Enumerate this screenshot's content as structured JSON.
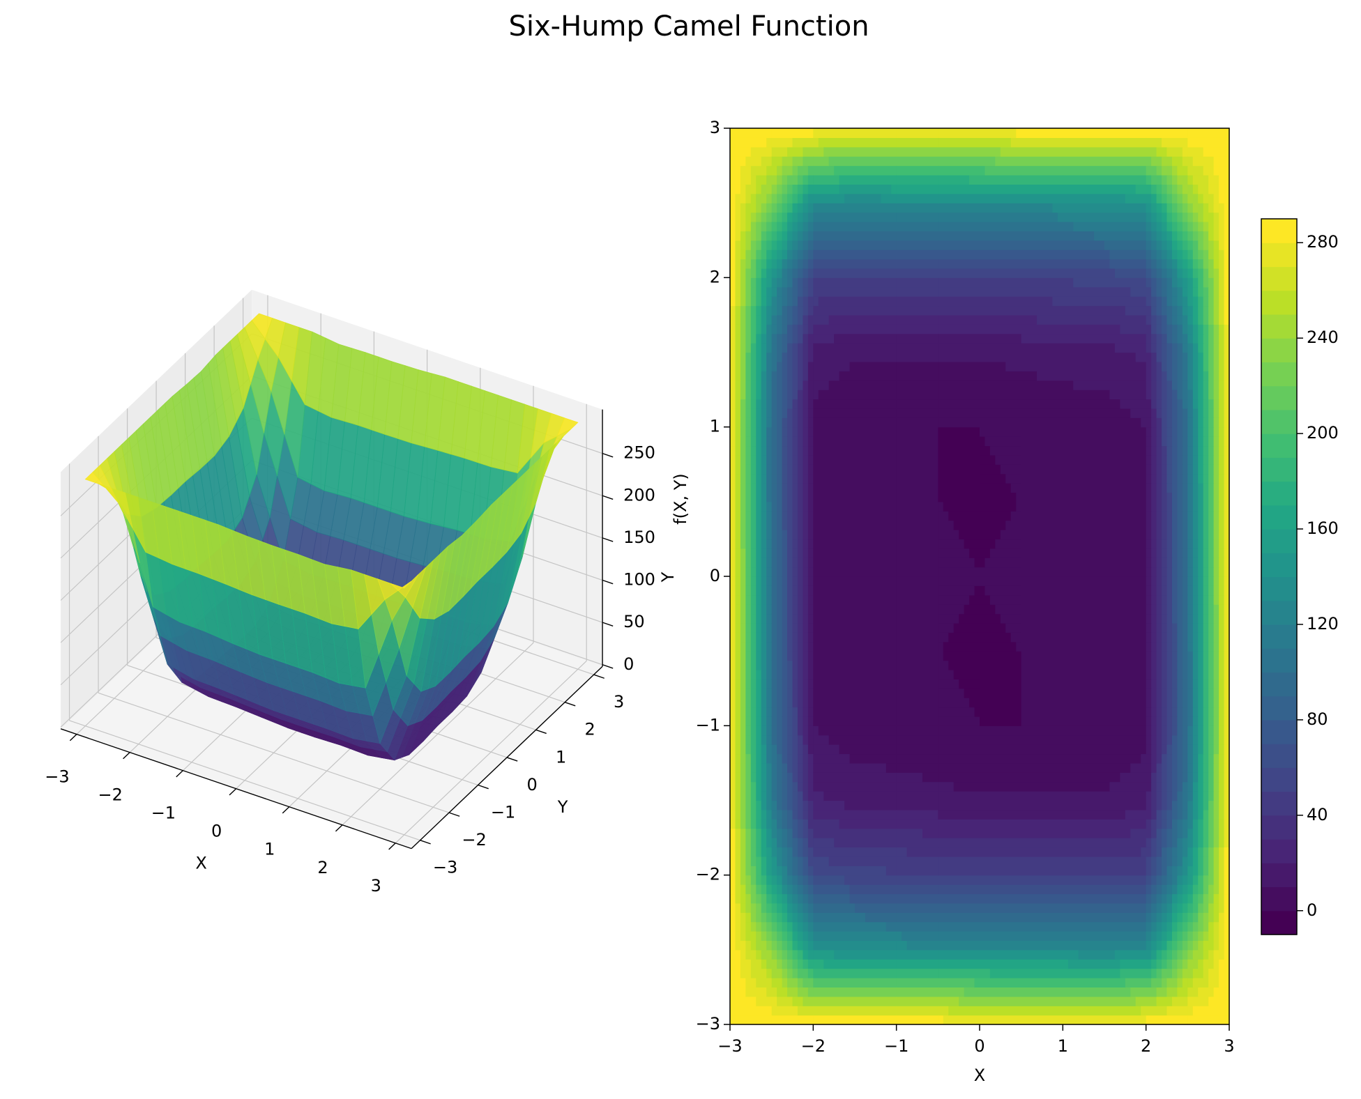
{
  "title": "Six-Hump Camel Function",
  "chart_data": [
    {
      "type": "surface3d",
      "xlabel": "X",
      "ylabel": "Y",
      "zlabel": "f(X, Y)",
      "colormap": "viridis",
      "clim": [
        -1,
        290
      ],
      "x": [
        -3,
        -2.5,
        -2,
        -1.5,
        -1,
        -0.5,
        0,
        0.5,
        1,
        1.5,
        2,
        2.5,
        3
      ],
      "y": [
        -3,
        -2.5,
        -2,
        -1.5,
        -1,
        -0.5,
        0,
        0.5,
        1,
        1.5,
        2,
        2.5,
        3
      ],
      "z": [
        [
          290,
          290,
          290,
          290,
          290,
          290,
          288,
          287,
          287,
          286,
          290,
          290,
          290
        ],
        [
          290,
          237,
          144,
          137,
          136,
          133,
          131,
          131,
          131,
          129,
          134,
          225,
          290
        ],
        [
          290,
          153,
          60,
          53,
          52,
          50,
          48,
          48,
          48,
          47,
          52,
          143,
          290
        ],
        [
          290,
          115,
          22,
          16,
          15,
          13,
          11,
          11,
          12,
          11,
          16,
          108,
          290
        ],
        [
          290,
          103,
          10,
          4,
          3,
          1,
          0,
          0,
          1,
          1,
          6,
          98,
          287
        ],
        [
          290,
          100,
          8,
          2,
          2,
          0,
          -1,
          0,
          1,
          1,
          6,
          98,
          288
        ],
        [
          290,
          100,
          8,
          2,
          2,
          1,
          0,
          1,
          2,
          2,
          8,
          100,
          290
        ],
        [
          288,
          98,
          6,
          1,
          1,
          0,
          -1,
          0,
          2,
          2,
          8,
          100,
          290
        ],
        [
          287,
          98,
          6,
          1,
          1,
          0,
          0,
          1,
          3,
          4,
          10,
          103,
          290
        ],
        [
          290,
          108,
          16,
          11,
          12,
          11,
          11,
          13,
          15,
          16,
          22,
          115,
          290
        ],
        [
          290,
          143,
          52,
          47,
          48,
          48,
          48,
          50,
          52,
          53,
          60,
          153,
          290
        ],
        [
          290,
          225,
          134,
          129,
          131,
          131,
          131,
          133,
          136,
          137,
          144,
          237,
          290
        ],
        [
          290,
          290,
          290,
          286,
          287,
          287,
          288,
          290,
          290,
          290,
          290,
          290,
          290
        ]
      ],
      "xlim": [
        -3.3,
        3.3
      ],
      "ylim": [
        -3.3,
        3.3
      ],
      "zlim": [
        -2,
        302
      ],
      "xticks": [
        {
          "value": -3,
          "label": "−3"
        },
        {
          "value": -2,
          "label": "−2"
        },
        {
          "value": -1,
          "label": "−1"
        },
        0,
        1,
        2,
        3
      ],
      "yticks": [
        {
          "value": -3,
          "label": "−3"
        },
        {
          "value": -2,
          "label": "−2"
        },
        {
          "value": -1,
          "label": "−1"
        },
        0,
        1,
        2,
        3
      ],
      "zticks": [
        0,
        50,
        100,
        150,
        200,
        250
      ],
      "grid": true
    },
    {
      "type": "contourf",
      "xlabel": "X",
      "ylabel": "Y",
      "colormap": "viridis",
      "clim": [
        -10,
        290
      ],
      "n_levels": 30,
      "x": [
        -3,
        -2.5,
        -2,
        -1.5,
        -1,
        -0.5,
        0,
        0.5,
        1,
        1.5,
        2,
        2.5,
        3
      ],
      "y": [
        -3,
        -2.5,
        -2,
        -1.5,
        -1,
        -0.5,
        0,
        0.5,
        1,
        1.5,
        2,
        2.5,
        3
      ],
      "z": [
        [
          290,
          290,
          290,
          290,
          290,
          290,
          288,
          287,
          287,
          286,
          290,
          290,
          290
        ],
        [
          290,
          237,
          144,
          137,
          136,
          133,
          131,
          131,
          131,
          129,
          134,
          225,
          290
        ],
        [
          290,
          153,
          60,
          53,
          52,
          50,
          48,
          48,
          48,
          47,
          52,
          143,
          290
        ],
        [
          290,
          115,
          22,
          16,
          15,
          13,
          11,
          11,
          12,
          11,
          16,
          108,
          290
        ],
        [
          290,
          103,
          10,
          4,
          3,
          1,
          0,
          0,
          1,
          1,
          6,
          98,
          287
        ],
        [
          290,
          100,
          8,
          2,
          2,
          0,
          -1,
          0,
          1,
          1,
          6,
          98,
          288
        ],
        [
          290,
          100,
          8,
          2,
          2,
          1,
          0,
          1,
          2,
          2,
          8,
          100,
          290
        ],
        [
          288,
          98,
          6,
          1,
          1,
          0,
          -1,
          0,
          2,
          2,
          8,
          100,
          290
        ],
        [
          287,
          98,
          6,
          1,
          1,
          0,
          0,
          1,
          3,
          4,
          10,
          103,
          290
        ],
        [
          290,
          108,
          16,
          11,
          12,
          11,
          11,
          13,
          15,
          16,
          22,
          115,
          290
        ],
        [
          290,
          143,
          52,
          47,
          48,
          48,
          48,
          50,
          52,
          53,
          60,
          153,
          290
        ],
        [
          290,
          225,
          134,
          129,
          131,
          131,
          131,
          133,
          136,
          137,
          144,
          237,
          290
        ],
        [
          290,
          290,
          290,
          286,
          287,
          287,
          288,
          290,
          290,
          290,
          290,
          290,
          290
        ]
      ],
      "xlim": [
        -3,
        3
      ],
      "ylim": [
        -3,
        3
      ],
      "xticks": [
        {
          "value": -3,
          "label": "−3"
        },
        {
          "value": -2,
          "label": "−2"
        },
        {
          "value": -1,
          "label": "−1"
        },
        0,
        1,
        2,
        3
      ],
      "yticks": [
        {
          "value": -3,
          "label": "−3"
        },
        {
          "value": -2,
          "label": "−2"
        },
        {
          "value": -1,
          "label": "−1"
        },
        0,
        1,
        2,
        3
      ],
      "colorbar_ticks": [
        0,
        40,
        80,
        120,
        160,
        200,
        240,
        280
      ]
    }
  ]
}
